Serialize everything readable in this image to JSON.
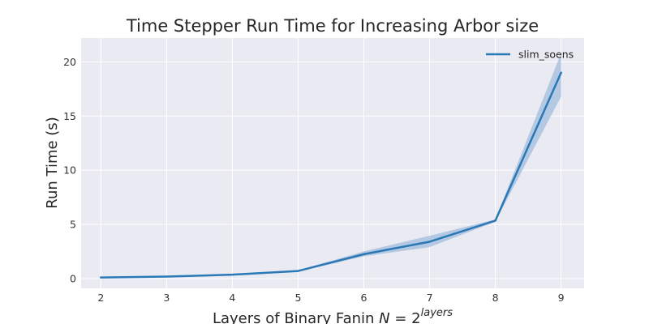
{
  "chart_data": {
    "type": "line",
    "title": "Time Stepper Run Time for Increasing Arbor size",
    "xlabel_prefix": "Layers of Binary Fanin ",
    "xlabel_var": "N",
    "xlabel_eq": " = 2",
    "xlabel_sup": "layers",
    "ylabel": "Run Time (s)",
    "xlim": [
      1.7,
      9.35
    ],
    "ylim": [
      -0.9,
      22.2
    ],
    "x_ticks": [
      2,
      3,
      4,
      5,
      6,
      7,
      8,
      9
    ],
    "y_ticks": [
      0,
      5,
      10,
      15,
      20
    ],
    "grid": true,
    "legend_position": "top-right",
    "series": [
      {
        "name": "slim_soens",
        "color": "#2a78b5",
        "band_color": "#a9c2e0",
        "x": [
          2,
          3,
          4,
          5,
          6,
          7,
          8,
          9
        ],
        "y": [
          0.1,
          0.18,
          0.36,
          0.7,
          2.25,
          3.4,
          5.35,
          19.0
        ],
        "y_low": [
          0.08,
          0.15,
          0.32,
          0.64,
          2.05,
          2.9,
          5.25,
          16.8
        ],
        "y_high": [
          0.12,
          0.21,
          0.4,
          0.76,
          2.5,
          3.95,
          5.45,
          20.8
        ]
      }
    ]
  },
  "colors": {
    "plot_background": "#eaeaf2",
    "grid": "#ffffff"
  }
}
